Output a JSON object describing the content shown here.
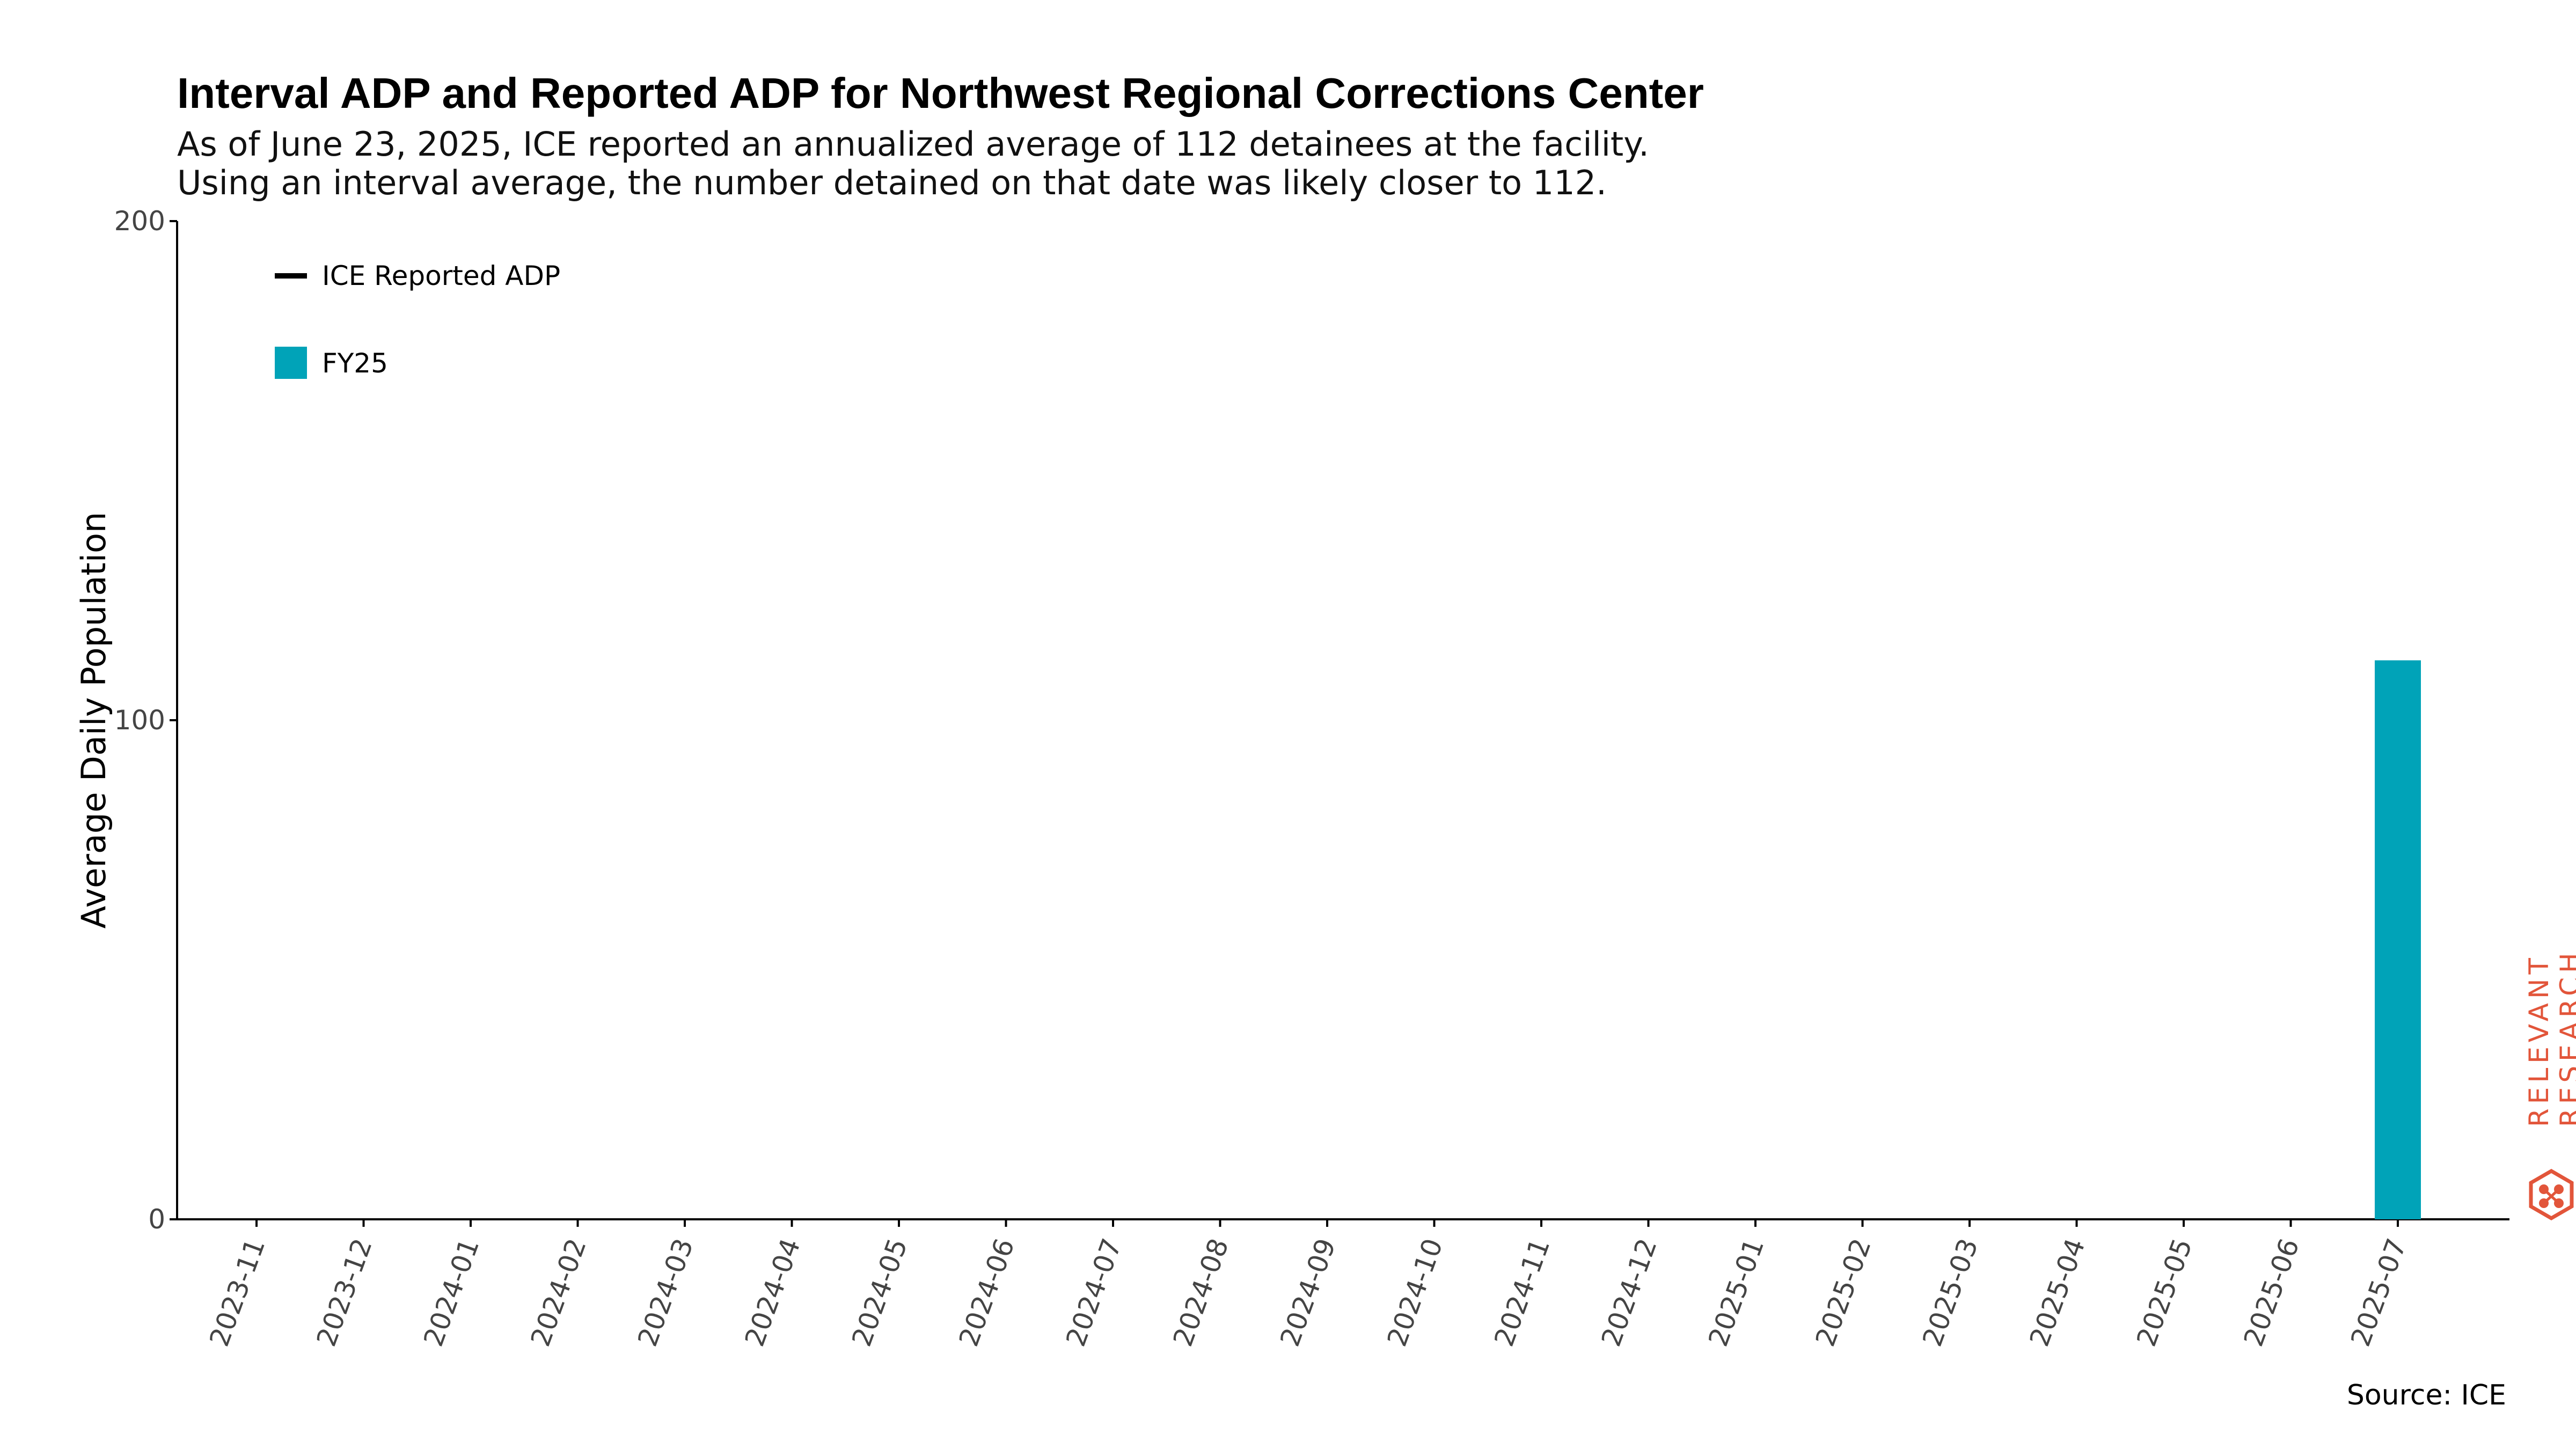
{
  "header": {
    "title": "Interval ADP and Reported ADP for Northwest Regional Corrections Center",
    "subtitle_line1": "As of June 23, 2025, ICE reported an annualized average of 112 detainees at the facility.",
    "subtitle_line2": "Using an interval average, the number detained on that date was likely closer to 112."
  },
  "footer": {
    "source": "Source: ICE"
  },
  "logo": {
    "line1": "RELEVANT",
    "line2": "RESEARCH",
    "color": "#e2553a",
    "icon": "hexagon-network-icon"
  },
  "chart_data": {
    "type": "bar",
    "title": "Interval ADP and Reported ADP for Northwest Regional Corrections Center",
    "ylabel": "Average Daily Population",
    "xlabel": "",
    "ylim": [
      0,
      200
    ],
    "yticks": [
      0,
      100,
      200
    ],
    "categories": [
      "2023-11",
      "2023-12",
      "2024-01",
      "2024-02",
      "2024-03",
      "2024-04",
      "2024-05",
      "2024-06",
      "2024-07",
      "2024-08",
      "2024-09",
      "2024-10",
      "2024-11",
      "2024-12",
      "2025-01",
      "2025-02",
      "2025-03",
      "2025-04",
      "2025-05",
      "2025-06",
      "2025-07"
    ],
    "series": [
      {
        "name": "FY25",
        "color": "#00a3b8",
        "values": [
          null,
          null,
          null,
          null,
          null,
          null,
          null,
          null,
          null,
          null,
          null,
          null,
          null,
          null,
          null,
          null,
          null,
          null,
          null,
          null,
          112
        ]
      }
    ],
    "reported_line": {
      "name": "ICE Reported ADP",
      "color": "#000000",
      "values": []
    },
    "legend": [
      {
        "label": "ICE Reported ADP",
        "marker": "line",
        "color": "#000000"
      },
      {
        "label": "FY25",
        "marker": "square",
        "color": "#00a3b8"
      }
    ],
    "legend_placement": "top-left",
    "grid": false
  }
}
